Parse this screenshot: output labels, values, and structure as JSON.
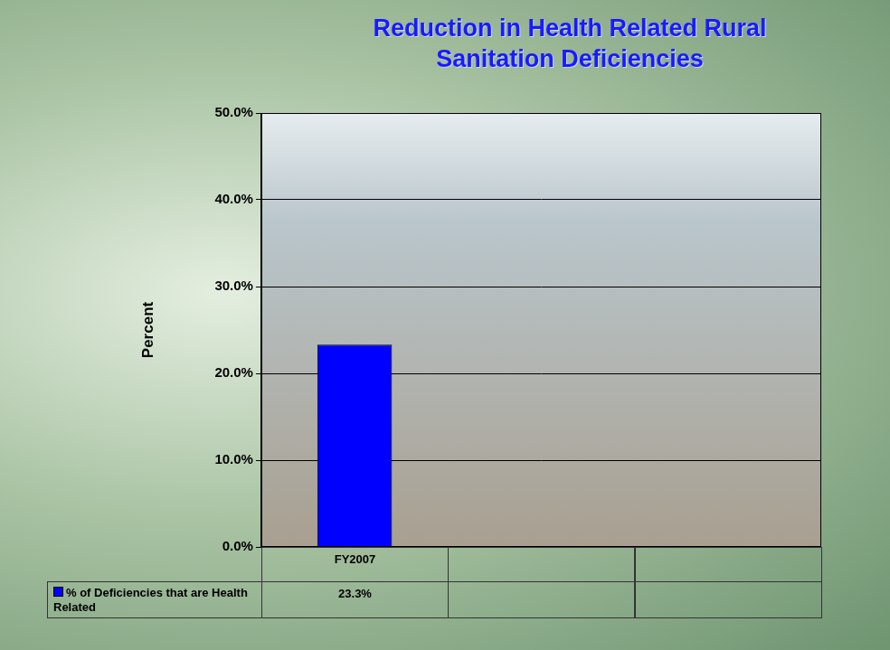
{
  "chart_data": {
    "type": "bar",
    "title": "Reduction in Health Related Rural Sanitation Deficiencies",
    "y_label": "Percent",
    "categories": [
      "FY2007",
      null,
      null
    ],
    "series": [
      {
        "name": "% of Deficiencies that are Health Related",
        "color": "#0000ff",
        "values": [
          23.3,
          null,
          null
        ],
        "value_labels": [
          "23.3%",
          null,
          null
        ]
      }
    ],
    "ylim": [
      0,
      50
    ],
    "yticks": [
      {
        "value": 0,
        "label": "0.0%"
      },
      {
        "value": 10,
        "label": "10.0%"
      },
      {
        "value": 20,
        "label": "20.0%"
      },
      {
        "value": 30,
        "label": "30.0%"
      },
      {
        "value": 40,
        "label": "40.0%"
      },
      {
        "value": 50,
        "label": "50.0%"
      }
    ],
    "grid": true,
    "legend": "bottom",
    "data_labels": true,
    "tick_labels": "y"
  }
}
